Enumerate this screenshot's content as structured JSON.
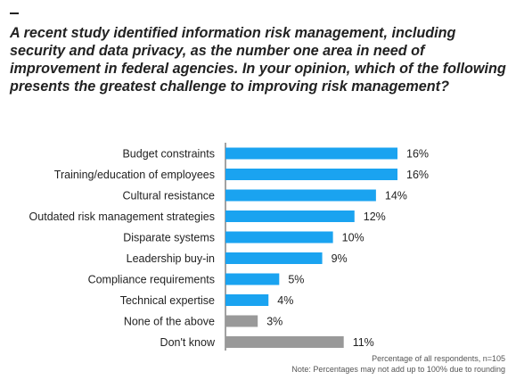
{
  "question": "A recent study identified information risk management, including security and data privacy, as the number one area in need of improvement in federal agencies. In your opinion, which of the following presents the greatest challenge to improving risk management?",
  "chart_data": {
    "type": "bar",
    "orientation": "horizontal",
    "categories": [
      "Budget constraints",
      "Training/education of employees",
      "Cultural resistance",
      "Outdated risk management strategies",
      "Disparate systems",
      "Leadership buy-in",
      "Compliance requirements",
      "Technical expertise",
      "None of the above",
      "Don't know"
    ],
    "values": [
      16,
      16,
      14,
      12,
      10,
      9,
      5,
      4,
      3,
      11
    ],
    "value_labels": [
      "16%",
      "16%",
      "14%",
      "12%",
      "10%",
      "9%",
      "5%",
      "4%",
      "3%",
      "11%"
    ],
    "colors": [
      "#1aa3f0",
      "#1aa3f0",
      "#1aa3f0",
      "#1aa3f0",
      "#1aa3f0",
      "#1aa3f0",
      "#1aa3f0",
      "#1aa3f0",
      "#999999",
      "#999999"
    ],
    "xlim": [
      0,
      16
    ],
    "grid": false,
    "legend": "none"
  },
  "footnotes": {
    "respondents": "Percentage of all respondents, n=105",
    "rounding": "Note: Percentages may not add up to 100% due to rounding"
  }
}
